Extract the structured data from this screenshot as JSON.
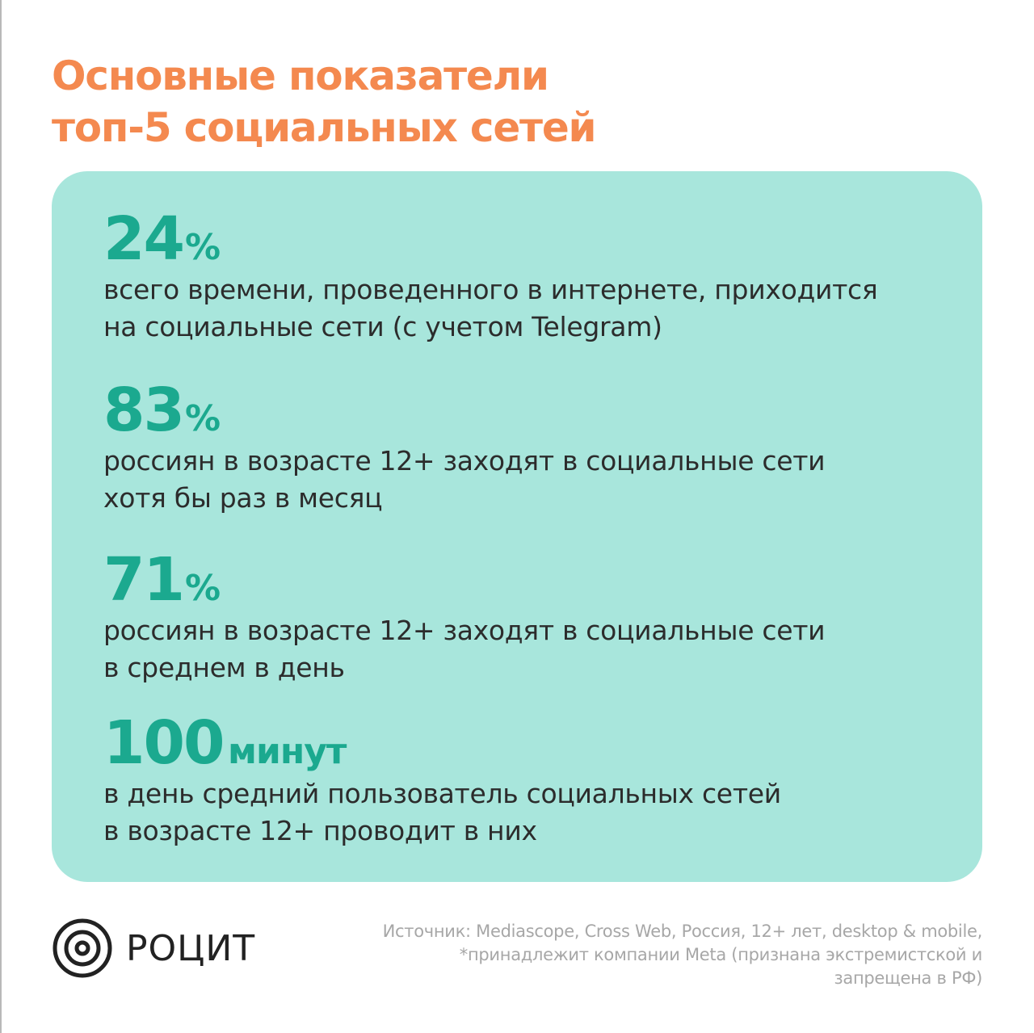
{
  "title": {
    "line1": "Основные показатели",
    "line2": "топ-5 социальных сетей"
  },
  "stats": [
    {
      "value": "24",
      "unit": "%",
      "desc_line1": "всего времени, проведенного в интернете, приходится",
      "desc_line2": "на социальные сети (с учетом Telegram)"
    },
    {
      "value": "83",
      "unit": "%",
      "desc_line1": "россиян в возрасте 12+ заходят в социальные сети",
      "desc_line2": "хотя бы раз в месяц"
    },
    {
      "value": "71",
      "unit": "%",
      "desc_line1": "россиян в возрасте 12+ заходят в социальные сети",
      "desc_line2": "в среднем в день"
    },
    {
      "value": "100",
      "unit": "минут",
      "desc_line1": "в день средний пользователь социальных сетей",
      "desc_line2": "в возрасте 12+ проводит в них"
    }
  ],
  "logo": {
    "text": "РОЦИТ",
    "icon": "concentric-circles-logo-icon"
  },
  "source": {
    "line1": "Источник: Mediascope, Cross Web, Россия, 12+ лет, desktop & mobile,",
    "line2": "*принадлежит компании Meta (признана экстремистской и",
    "line3": "запрещена в РФ)"
  },
  "colors": {
    "title": "#f4894f",
    "card_bg": "#a8e6dc",
    "stat_number": "#1ba98f",
    "body_text": "#2c2c2c",
    "source_text": "#a7a7a7"
  }
}
